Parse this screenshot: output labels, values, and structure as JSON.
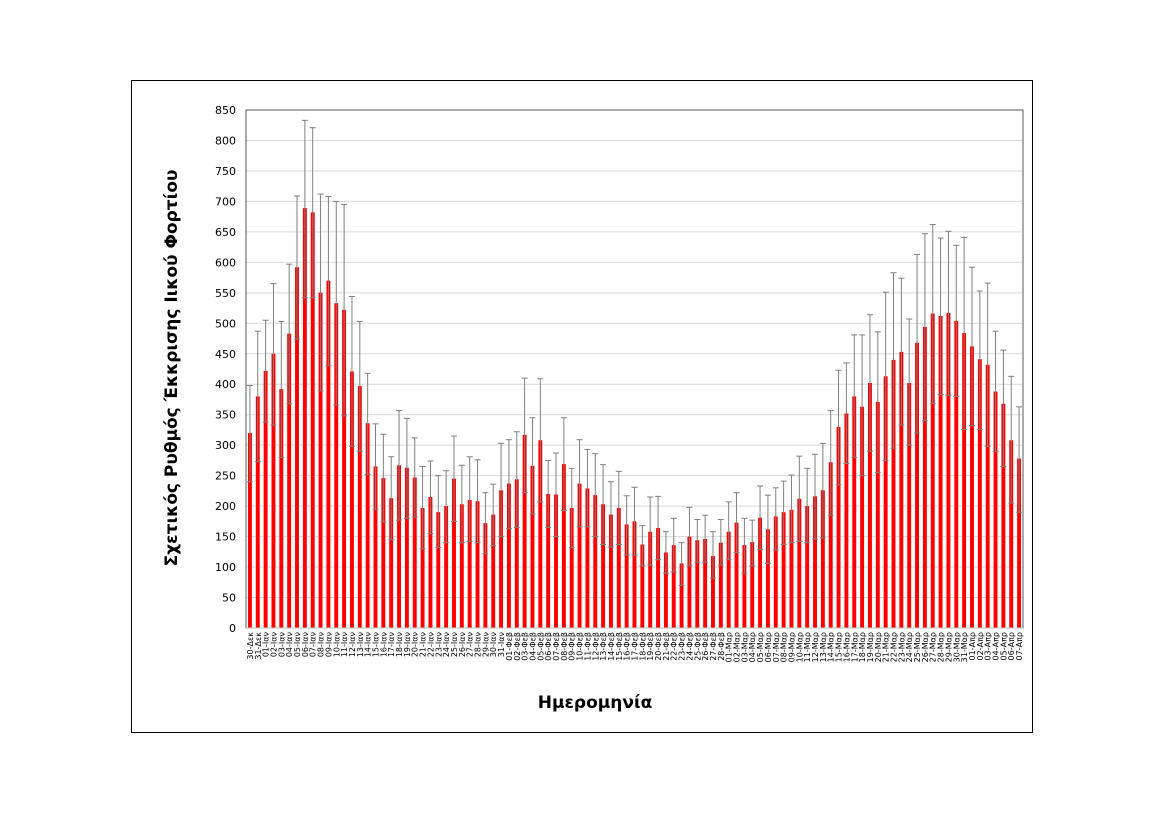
{
  "chart_data": {
    "type": "bar",
    "title": "",
    "xlabel": "Ημερομηνία",
    "ylabel": "Σχετικός Ρυθμός Έκκρισης Ιικού Φορτίου",
    "ylim": [
      0,
      850
    ],
    "yticks": [
      0,
      50,
      100,
      150,
      200,
      250,
      300,
      350,
      400,
      450,
      500,
      550,
      600,
      650,
      700,
      750,
      800,
      850
    ],
    "grid": true,
    "legend": null,
    "bar_color": "#ff0000",
    "errorbar_color": "#7f7f7f",
    "categories": [
      "30-Δεκ",
      "31-Δεκ",
      "01-Ιαν",
      "02-Ιαν",
      "03-Ιαν",
      "04-Ιαν",
      "05-Ιαν",
      "06-Ιαν",
      "07-Ιαν",
      "08-Ιαν",
      "09-Ιαν",
      "10-Ιαν",
      "11-Ιαν",
      "12-Ιαν",
      "13-Ιαν",
      "14-Ιαν",
      "15-Ιαν",
      "16-Ιαν",
      "17-Ιαν",
      "18-Ιαν",
      "19-Ιαν",
      "20-Ιαν",
      "21-Ιαν",
      "22-Ιαν",
      "23-Ιαν",
      "24-Ιαν",
      "25-Ιαν",
      "26-Ιαν",
      "27-Ιαν",
      "28-Ιαν",
      "29-Ιαν",
      "30-Ιαν",
      "31-Ιαν",
      "01-Φεβ",
      "02-Φεβ",
      "03-Φεβ",
      "04-Φεβ",
      "05-Φεβ",
      "06-Φεβ",
      "07-Φεβ",
      "08-Φεβ",
      "09-Φεβ",
      "10-Φεβ",
      "11-Φεβ",
      "12-Φεβ",
      "13-Φεβ",
      "14-Φεβ",
      "15-Φεβ",
      "16-Φεβ",
      "17-Φεβ",
      "18-Φεβ",
      "19-Φεβ",
      "20-Φεβ",
      "21-Φεβ",
      "22-Φεβ",
      "23-Φεβ",
      "24-Φεβ",
      "25-Φεβ",
      "26-Φεβ",
      "27-Φεβ",
      "28-Φεβ",
      "01-Μαρ",
      "02-Μαρ",
      "03-Μαρ",
      "04-Μαρ",
      "05-Μαρ",
      "06-Μαρ",
      "07-Μαρ",
      "08-Μαρ",
      "09-Μαρ",
      "10-Μαρ",
      "11-Μαρ",
      "12-Μαρ",
      "13-Μαρ",
      "14-Μαρ",
      "15-Μαρ",
      "16-Μαρ",
      "17-Μαρ",
      "18-Μαρ",
      "19-Μαρ",
      "20-Μαρ",
      "21-Μαρ",
      "22-Μαρ",
      "23-Μαρ",
      "24-Μαρ",
      "25-Μαρ",
      "26-Μαρ",
      "27-Μαρ",
      "28-Μαρ",
      "29-Μαρ",
      "30-Μαρ",
      "31-Μαρ",
      "01-Απρ",
      "02-Απρ",
      "03-Απρ",
      "04-Απρ",
      "05-Απρ",
      "06-Απρ",
      "07-Απρ"
    ],
    "series": [
      {
        "name": "Σχετικός Ρυθμός Έκκρισης Ιικού Φορτίου",
        "values": [
          320,
          380,
          422,
          450,
          392,
          483,
          592,
          689,
          682,
          550,
          570,
          533,
          522,
          421,
          397,
          336,
          265,
          246,
          213,
          267,
          263,
          247,
          197,
          215,
          190,
          200,
          245,
          203,
          210,
          208,
          172,
          186,
          226,
          237,
          244,
          317,
          266,
          308,
          220,
          219,
          269,
          197,
          237,
          229,
          218,
          203,
          186,
          197,
          170,
          175,
          137,
          158,
          164,
          124,
          136,
          106,
          150,
          144,
          146,
          118,
          140,
          158,
          173,
          136,
          141,
          181,
          162,
          183,
          190,
          194,
          212,
          200,
          216,
          226,
          272,
          330,
          352,
          380,
          363,
          402,
          371,
          413,
          440,
          453,
          402,
          468,
          494,
          516,
          512,
          517,
          504,
          484,
          462,
          441,
          432,
          388,
          368,
          308,
          278
        ],
        "error_upper": [
          398,
          487,
          505,
          565,
          503,
          597,
          709,
          833,
          821,
          712,
          708,
          700,
          695,
          544,
          503,
          418,
          335,
          318,
          281,
          357,
          344,
          312,
          265,
          274,
          250,
          258,
          315,
          267,
          281,
          276,
          222,
          236,
          303,
          309,
          322,
          410,
          345,
          409,
          275,
          287,
          345,
          262,
          309,
          293,
          286,
          268,
          240,
          257,
          217,
          231,
          168,
          215,
          216,
          158,
          180,
          140,
          198,
          178,
          185,
          158,
          178,
          207,
          222,
          180,
          177,
          233,
          218,
          230,
          241,
          251,
          282,
          262,
          285,
          303,
          357,
          423,
          435,
          481,
          481,
          514,
          486,
          551,
          583,
          574,
          507,
          613,
          647,
          662,
          640,
          651,
          628,
          641,
          592,
          553,
          566,
          487,
          456,
          413,
          363
        ],
        "error_lower": [
          240,
          273,
          338,
          333,
          280,
          368,
          474,
          542,
          542,
          389,
          431,
          366,
          348,
          298,
          290,
          252,
          195,
          174,
          145,
          177,
          180,
          182,
          130,
          155,
          132,
          140,
          175,
          140,
          142,
          140,
          122,
          135,
          150,
          163,
          165,
          222,
          187,
          207,
          165,
          150,
          193,
          132,
          166,
          166,
          150,
          137,
          133,
          137,
          120,
          120,
          102,
          103,
          112,
          90,
          92,
          70,
          102,
          108,
          108,
          82,
          103,
          112,
          124,
          90,
          102,
          129,
          106,
          128,
          137,
          140,
          142,
          140,
          146,
          148,
          185,
          235,
          270,
          280,
          250,
          290,
          255,
          275,
          295,
          333,
          300,
          320,
          340,
          368,
          383,
          382,
          380,
          326,
          332,
          326,
          298,
          290,
          265,
          205,
          190
        ]
      }
    ]
  }
}
